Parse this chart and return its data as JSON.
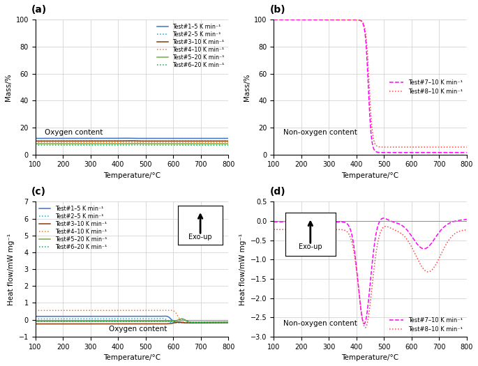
{
  "fig_size": [
    6.85,
    5.25
  ],
  "dpi": 100,
  "colors": {
    "blue": "#4472C4",
    "cyan": "#00B0F0",
    "brown": "#843C0C",
    "orange": "#ED7D31",
    "green_dark": "#70AD47",
    "green_dot": "#00B050",
    "magenta7": "#FF00FF",
    "magenta8": "#FF4444"
  },
  "panel_a": {
    "title": "(a)",
    "xlabel": "Temperature/°C",
    "ylabel": "Mass/%",
    "xlim": [
      100,
      800
    ],
    "ylim": [
      0,
      100
    ],
    "annotation": "Oxygen content",
    "legend": [
      "Test#1–5 K min⁻¹",
      "Test#2–5 K min⁻¹",
      "Test#3–10 K min⁻¹",
      "Test#4–10 K min⁻¹",
      "Test#5–20 K min⁻¹",
      "Test#6–20 K min⁻¹"
    ]
  },
  "panel_b": {
    "title": "(b)",
    "xlabel": "Temperature/°C",
    "ylabel": "Mass/%",
    "xlim": [
      100,
      800
    ],
    "ylim": [
      0,
      100
    ],
    "annotation": "Non-oxygen content",
    "legend": [
      "Test#7–10 K min⁻¹",
      "Test#8–10 K min⁻¹"
    ]
  },
  "panel_c": {
    "title": "(c)",
    "xlabel": "Temperature/°C",
    "ylabel": "Heat flow/mW mg⁻¹",
    "xlim": [
      100,
      800
    ],
    "ylim": [
      -1,
      7
    ],
    "annotation": "Oxygen content",
    "legend": [
      "Test#1–5 K min⁻¹",
      "Test#2–5 K min⁻¹",
      "Test#3–10 K min⁻¹",
      "Test#4–10 K min⁻¹",
      "Test#5–20 K min⁻¹",
      "Test#6–20 K min⁻¹"
    ]
  },
  "panel_d": {
    "title": "(d)",
    "xlabel": "Temperature/°C",
    "ylabel": "Heat flow/mW mg⁻¹",
    "xlim": [
      100,
      800
    ],
    "ylim": [
      -3.0,
      0.5
    ],
    "annotation": "Non-oxygen content",
    "legend": [
      "Test#7–10 K min⁻¹",
      "Test#8–10 K min⁻¹"
    ]
  }
}
